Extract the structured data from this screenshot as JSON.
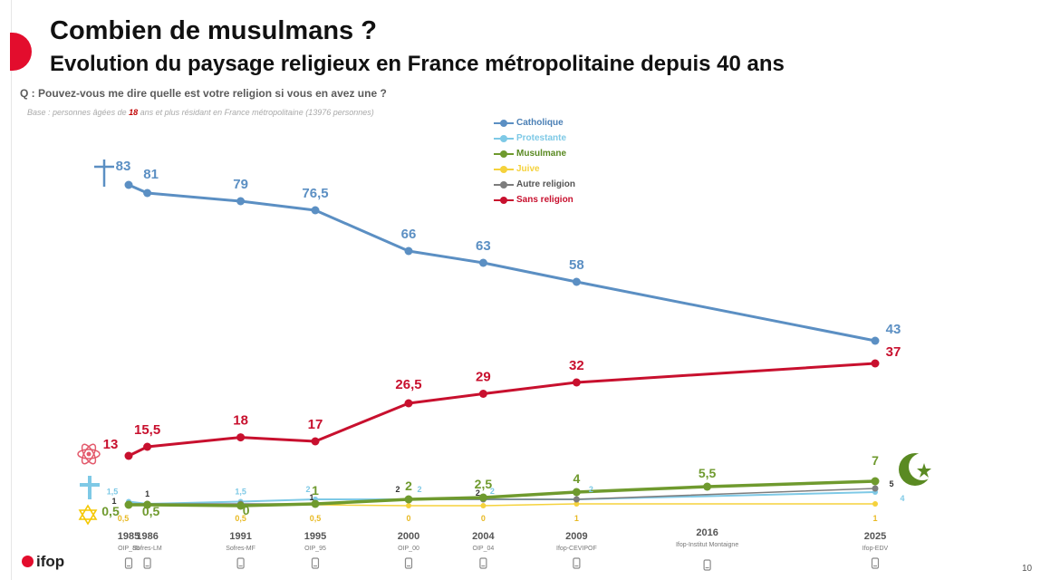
{
  "title": "Combien de musulmans ?",
  "subtitle": "Evolution du paysage religieux en France métropolitaine depuis 40 ans",
  "question": "Q : Pouvez-vous me dire quelle est votre religion si vous en avez une ?",
  "base": {
    "prefix": "Base : personnes âgées de ",
    "highlight": "18",
    "suffix": " ans et plus résidant en France métropolitaine (13976 personnes)"
  },
  "logo": "ifop",
  "page_number": "10",
  "colors": {
    "Catholique": "#5b8fc3",
    "Protestante": "#7ec9e6",
    "Musulmane": "#6f9a2e",
    "Juive": "#f5d23c",
    "Autre religion": "#7d7d7d",
    "Sans religion": "#c8102e"
  },
  "icons": [
    "crucifix-icon",
    "atom-icon",
    "cross-icon",
    "star-of-david-icon",
    "crescent-star-icon"
  ],
  "chart_data": {
    "type": "line",
    "x": [
      1985,
      1986,
      1991,
      1995,
      2000,
      2004,
      2009,
      2016,
      2025
    ],
    "x_labels": [
      "1985",
      "1986",
      "1991",
      "1995",
      "2000",
      "2004",
      "2009",
      "2016",
      "2025"
    ],
    "sources": [
      "OIP_85",
      "Sofres-LM",
      "Sofres-MF",
      "OIP_95",
      "OIP_00",
      "OIP_04",
      "Ifop-CEVIPOF",
      "Ifop-Institut Montaigne",
      "Ifop-EDV"
    ],
    "ylim": [
      0,
      90
    ],
    "grid": false,
    "legend_position": "top-center",
    "series": [
      {
        "name": "Catholique",
        "values": [
          83,
          81,
          79,
          76.5,
          66,
          63,
          58,
          null,
          43
        ],
        "labels": [
          "83",
          "81",
          "79",
          "76,5",
          "66",
          "63",
          "58",
          "",
          "43"
        ]
      },
      {
        "name": "Protestante",
        "values": [
          1.5,
          1,
          1.5,
          2,
          2,
          2,
          2,
          null,
          4
        ],
        "labels": [
          "1,5",
          "",
          "1,5",
          "2",
          "2",
          "2",
          "2",
          "",
          "4"
        ]
      },
      {
        "name": "Musulmane",
        "values": [
          0.5,
          0.5,
          0,
          1,
          2,
          2.5,
          4,
          5.5,
          7
        ],
        "labels": [
          "0,5",
          "0,5",
          "0",
          "1",
          "2",
          "2,5",
          "4",
          "5,5",
          "7"
        ]
      },
      {
        "name": "Juive",
        "values": [
          0.5,
          0.5,
          0.5,
          0.5,
          0,
          0,
          1,
          null,
          1
        ],
        "labels": [
          "0,5",
          "",
          "0,5",
          "0,5",
          "0",
          "0",
          "1",
          "",
          "1"
        ]
      },
      {
        "name": "Autre religion",
        "values": [
          1,
          1,
          1,
          1,
          2,
          2,
          2,
          null,
          5
        ],
        "labels": [
          "1",
          "1",
          "",
          "1",
          "2",
          "2",
          "",
          "",
          "5"
        ]
      },
      {
        "name": "Sans religion",
        "values": [
          13,
          15.5,
          18,
          17,
          26.5,
          29,
          32,
          null,
          37
        ],
        "labels": [
          "13",
          "15,5",
          "18",
          "17",
          "26,5",
          "29",
          "32",
          "",
          "37"
        ]
      }
    ]
  }
}
